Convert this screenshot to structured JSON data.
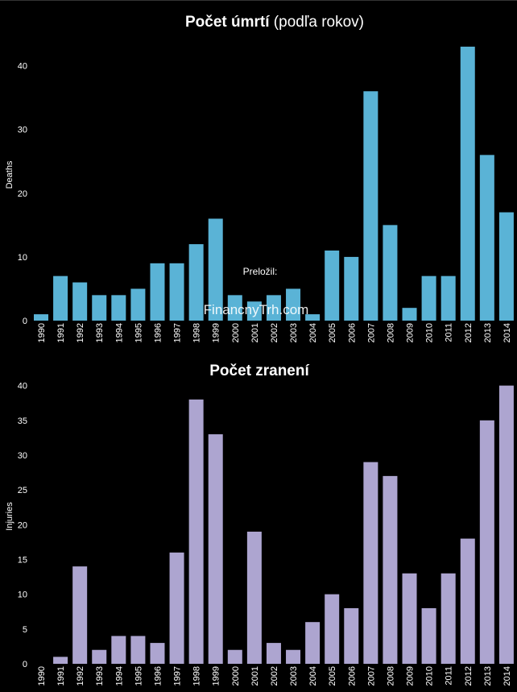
{
  "watermark": {
    "line1": "Preložil:",
    "line2": "FinancnyTrh.com"
  },
  "chart_data": [
    {
      "type": "bar",
      "title_bold": "Počet úmrtí",
      "title_normal": " (podľa rokov)",
      "xlabel": "",
      "ylabel": "Deaths",
      "ylim": [
        0,
        44
      ],
      "yticks": [
        0,
        10,
        20,
        30,
        40
      ],
      "grid": false,
      "color": "#5ab3d6",
      "categories": [
        "1990",
        "1991",
        "1992",
        "1993",
        "1994",
        "1995",
        "1996",
        "1997",
        "1998",
        "1999",
        "2000",
        "2001",
        "2002",
        "2003",
        "2004",
        "2005",
        "2006",
        "2007",
        "2008",
        "2009",
        "2010",
        "2011",
        "2012",
        "2013",
        "2014"
      ],
      "values": [
        1,
        7,
        6,
        4,
        4,
        5,
        9,
        9,
        12,
        16,
        4,
        3,
        4,
        5,
        1,
        11,
        10,
        36,
        15,
        2,
        7,
        7,
        43,
        26,
        17
      ]
    },
    {
      "type": "bar",
      "title_bold": "Počet zranení",
      "title_normal": "",
      "xlabel": "",
      "ylabel": "Injuries",
      "ylim": [
        0,
        41
      ],
      "yticks": [
        0,
        5,
        10,
        15,
        20,
        25,
        30,
        35,
        40
      ],
      "grid": false,
      "color": "#ada5d0",
      "categories": [
        "1990",
        "1991",
        "1992",
        "1993",
        "1994",
        "1995",
        "1996",
        "1997",
        "1998",
        "1999",
        "2000",
        "2001",
        "2002",
        "2003",
        "2004",
        "2005",
        "2006",
        "2007",
        "2008",
        "2009",
        "2010",
        "2011",
        "2012",
        "2013",
        "2014"
      ],
      "values": [
        0,
        1,
        14,
        2,
        4,
        4,
        3,
        16,
        38,
        33,
        2,
        19,
        3,
        2,
        6,
        10,
        8,
        29,
        27,
        13,
        8,
        13,
        18,
        35,
        40
      ]
    }
  ]
}
